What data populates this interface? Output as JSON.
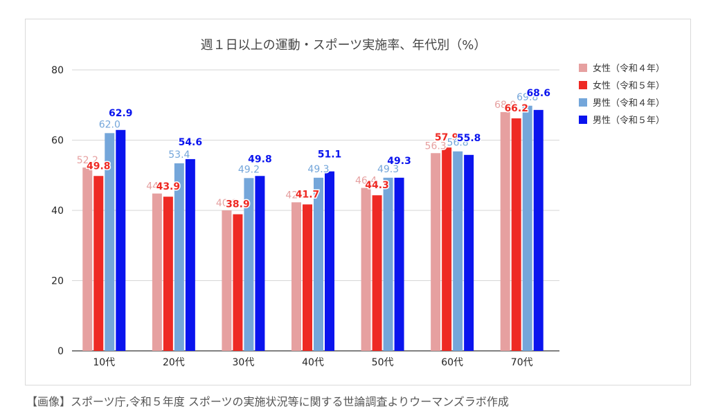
{
  "caption": "【画像】スポーツ庁,令和５年度 スポーツの実施状況等に関する世論調査よりウーマンズラボ作成",
  "chart_data": {
    "type": "bar",
    "title": "週１日以上の運動・スポーツ実施率、年代別（%）",
    "xlabel": "",
    "ylabel": "",
    "ylim": [
      0,
      80
    ],
    "yticks": [
      0,
      20,
      40,
      60,
      80
    ],
    "grid": true,
    "legend": "right",
    "categories": [
      "10代",
      "20代",
      "30代",
      "40代",
      "50代",
      "60代",
      "70代"
    ],
    "series": [
      {
        "name": "女性（令和４年）",
        "color": "#e6a0a0",
        "values": [
          52.2,
          44.8,
          40.0,
          42.3,
          46.4,
          56.3,
          68.0
        ]
      },
      {
        "name": "女性（令和５年）",
        "color": "#ee2a24",
        "values": [
          49.8,
          43.9,
          38.9,
          41.7,
          44.3,
          57.9,
          66.2
        ]
      },
      {
        "name": "男性（令和４年）",
        "color": "#74a6da",
        "values": [
          62.0,
          53.4,
          49.2,
          49.3,
          49.3,
          56.8,
          69.8
        ]
      },
      {
        "name": "男性（令和５年）",
        "color": "#0a14ee",
        "values": [
          62.9,
          54.6,
          49.8,
          51.1,
          49.3,
          55.8,
          68.6
        ]
      }
    ]
  }
}
